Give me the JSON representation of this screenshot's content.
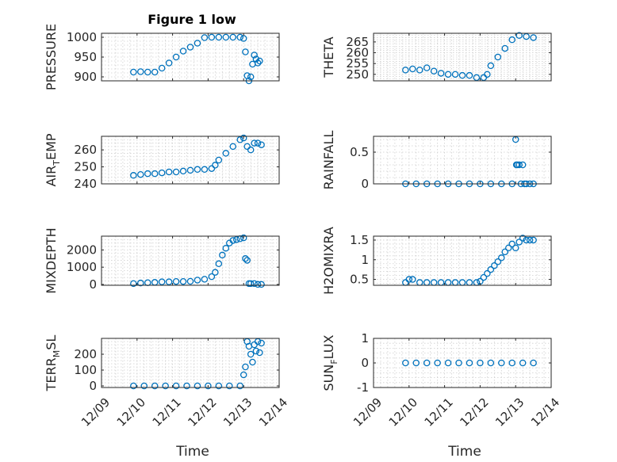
{
  "figure": {
    "title": "Figure 1 low",
    "marker_color": "#0072BD",
    "xlabel": "Time"
  },
  "chart_data": [
    {
      "type": "scatter",
      "title": "Figure 1 low",
      "ylabel_parts": [
        "PRESSURE"
      ],
      "xlim": [
        0,
        5
      ],
      "xticks": [],
      "xticklabels": [],
      "ylim": [
        890,
        1010
      ],
      "yticks": [
        900,
        950,
        1000
      ],
      "yticklabels": [
        "900",
        "950",
        "1000"
      ],
      "grid": true,
      "minor_grid": true,
      "series": [
        {
          "x": [
            0.9,
            1.1,
            1.3,
            1.5,
            1.7,
            1.9,
            2.1,
            2.3,
            2.5,
            2.7,
            2.9,
            3.1,
            3.3,
            3.5,
            3.7,
            3.9,
            4.0,
            4.05,
            4.1,
            4.15,
            4.2,
            4.25,
            4.3,
            4.35,
            4.4,
            4.45
          ],
          "y": [
            912,
            913,
            912,
            912,
            922,
            935,
            950,
            965,
            975,
            985,
            999,
            1000,
            1000,
            1000,
            1000,
            1000,
            997,
            963,
            903,
            890,
            900,
            932,
            955,
            945,
            935,
            940
          ]
        }
      ]
    },
    {
      "type": "scatter",
      "ylabel_parts": [
        "THETA"
      ],
      "xlim": [
        0,
        5
      ],
      "xticks": [],
      "xticklabels": [],
      "ylim": [
        247,
        269
      ],
      "yticks": [
        250,
        255,
        260,
        265
      ],
      "yticklabels": [
        "250",
        "255",
        "260",
        "265"
      ],
      "grid": true,
      "minor_grid": true,
      "series": [
        {
          "x": [
            0.9,
            1.1,
            1.3,
            1.5,
            1.7,
            1.9,
            2.1,
            2.3,
            2.5,
            2.7,
            2.9,
            3.1,
            3.2,
            3.3,
            3.5,
            3.7,
            3.9,
            4.1,
            4.3,
            4.5
          ],
          "y": [
            252,
            252.5,
            252,
            253,
            251.5,
            250.5,
            250,
            250,
            249.5,
            249.5,
            248.5,
            248.5,
            250,
            254,
            258,
            262,
            266,
            268,
            267.5,
            267
          ]
        }
      ]
    },
    {
      "type": "scatter",
      "ylabel_parts": [
        "AIR",
        "T",
        "EMP"
      ],
      "xlim": [
        0,
        5
      ],
      "xticks": [],
      "xticklabels": [],
      "ylim": [
        240,
        268
      ],
      "yticks": [
        240,
        250,
        260
      ],
      "yticklabels": [
        "240",
        "250",
        "260"
      ],
      "grid": true,
      "minor_grid": true,
      "series": [
        {
          "x": [
            0.9,
            1.1,
            1.3,
            1.5,
            1.7,
            1.9,
            2.1,
            2.3,
            2.5,
            2.7,
            2.9,
            3.1,
            3.2,
            3.3,
            3.5,
            3.7,
            3.9,
            4.0,
            4.1,
            4.2,
            4.3,
            4.4,
            4.5
          ],
          "y": [
            245,
            245.5,
            246,
            246,
            246.5,
            247,
            247,
            247.5,
            248,
            248.5,
            248.5,
            249,
            251,
            254,
            258,
            262,
            266,
            267,
            262,
            260,
            264,
            264,
            263
          ]
        }
      ]
    },
    {
      "type": "scatter",
      "ylabel_parts": [
        "RAINFALL"
      ],
      "xlim": [
        0,
        5
      ],
      "xticks": [],
      "xticklabels": [],
      "ylim": [
        0,
        0.75
      ],
      "yticks": [
        0,
        0.5
      ],
      "yticklabels": [
        "0",
        "0.5"
      ],
      "grid": true,
      "minor_grid": true,
      "series": [
        {
          "x": [
            0.9,
            1.2,
            1.5,
            1.8,
            2.1,
            2.4,
            2.7,
            3.0,
            3.3,
            3.6,
            3.9,
            4.0,
            4.02,
            4.05,
            4.1,
            4.15,
            4.2,
            4.25,
            4.3,
            4.4,
            4.5
          ],
          "y": [
            0,
            0,
            0,
            0,
            0,
            0,
            0,
            0,
            0,
            0,
            0,
            0.7,
            0.3,
            0.3,
            0.3,
            0,
            0.3,
            0,
            0,
            0,
            0
          ]
        }
      ]
    },
    {
      "type": "scatter",
      "ylabel_parts": [
        "MIXDEPTH"
      ],
      "xlim": [
        0,
        5
      ],
      "xticks": [],
      "xticklabels": [],
      "ylim": [
        -50,
        2800
      ],
      "yticks": [
        0,
        1000,
        2000
      ],
      "yticklabels": [
        "0",
        "1000",
        "2000"
      ],
      "grid": true,
      "minor_grid": true,
      "series": [
        {
          "x": [
            0.9,
            1.1,
            1.3,
            1.5,
            1.7,
            1.9,
            2.1,
            2.3,
            2.5,
            2.7,
            2.9,
            3.1,
            3.2,
            3.3,
            3.4,
            3.5,
            3.6,
            3.7,
            3.8,
            3.9,
            4.0,
            4.05,
            4.1,
            4.15,
            4.2,
            4.3,
            4.4,
            4.5
          ],
          "y": [
            50,
            80,
            100,
            120,
            150,
            150,
            170,
            170,
            180,
            250,
            300,
            450,
            700,
            1200,
            1700,
            2100,
            2400,
            2550,
            2600,
            2650,
            2700,
            1500,
            1400,
            50,
            50,
            50,
            0,
            0
          ]
        }
      ]
    },
    {
      "type": "scatter",
      "ylabel_parts": [
        "H2OMIXRA"
      ],
      "xlim": [
        0,
        5
      ],
      "xticks": [],
      "xticklabels": [],
      "ylim": [
        0.35,
        1.6
      ],
      "yticks": [
        0.5,
        1,
        1.5
      ],
      "yticklabels": [
        "0.5",
        "1",
        "1.5"
      ],
      "grid": true,
      "minor_grid": true,
      "series": [
        {
          "x": [
            0.9,
            1.0,
            1.1,
            1.3,
            1.5,
            1.7,
            1.9,
            2.1,
            2.3,
            2.5,
            2.7,
            2.9,
            3.0,
            3.1,
            3.2,
            3.3,
            3.4,
            3.5,
            3.6,
            3.7,
            3.8,
            3.9,
            4.0,
            4.1,
            4.2,
            4.3,
            4.4,
            4.5
          ],
          "y": [
            0.42,
            0.5,
            0.5,
            0.42,
            0.42,
            0.42,
            0.42,
            0.42,
            0.42,
            0.42,
            0.42,
            0.42,
            0.45,
            0.55,
            0.65,
            0.75,
            0.85,
            0.95,
            1.05,
            1.2,
            1.3,
            1.4,
            1.3,
            1.45,
            1.55,
            1.5,
            1.5,
            1.5
          ]
        }
      ]
    },
    {
      "type": "scatter",
      "ylabel_parts": [
        "TERR",
        "M",
        "SL"
      ],
      "xlim": [
        0,
        5
      ],
      "xticks": [
        0,
        1,
        2,
        3,
        4,
        5
      ],
      "xticklabels": [
        "12/09",
        "12/10",
        "12/11",
        "12/12",
        "12/13",
        "12/14"
      ],
      "ylim": [
        -10,
        300
      ],
      "yticks": [
        0,
        100,
        200
      ],
      "yticklabels": [
        "0",
        "100",
        "200"
      ],
      "grid": true,
      "minor_grid": true,
      "series": [
        {
          "x": [
            0.9,
            1.2,
            1.5,
            1.8,
            2.1,
            2.4,
            2.7,
            3.0,
            3.3,
            3.6,
            3.9,
            4.0,
            4.05,
            4.1,
            4.15,
            4.2,
            4.25,
            4.3,
            4.35,
            4.4,
            4.45,
            4.5
          ],
          "y": [
            0,
            0,
            0,
            0,
            0,
            0,
            0,
            0,
            0,
            0,
            0,
            70,
            120,
            280,
            250,
            200,
            150,
            260,
            220,
            280,
            210,
            270
          ]
        }
      ]
    },
    {
      "type": "scatter",
      "ylabel_parts": [
        "SUN",
        "F",
        "LUX"
      ],
      "xlim": [
        0,
        5
      ],
      "xticks": [
        0,
        1,
        2,
        3,
        4,
        5
      ],
      "xticklabels": [
        "12/09",
        "12/10",
        "12/11",
        "12/12",
        "12/13",
        "12/14"
      ],
      "ylim": [
        -1,
        1
      ],
      "yticks": [
        -1,
        0,
        1
      ],
      "yticklabels": [
        "-1",
        "0",
        "1"
      ],
      "grid": true,
      "minor_grid": true,
      "series": [
        {
          "x": [
            0.9,
            1.2,
            1.5,
            1.8,
            2.1,
            2.4,
            2.7,
            3.0,
            3.3,
            3.6,
            3.9,
            4.2,
            4.5
          ],
          "y": [
            0,
            0,
            0,
            0,
            0,
            0,
            0,
            0,
            0,
            0,
            0,
            0,
            0
          ]
        }
      ]
    }
  ]
}
